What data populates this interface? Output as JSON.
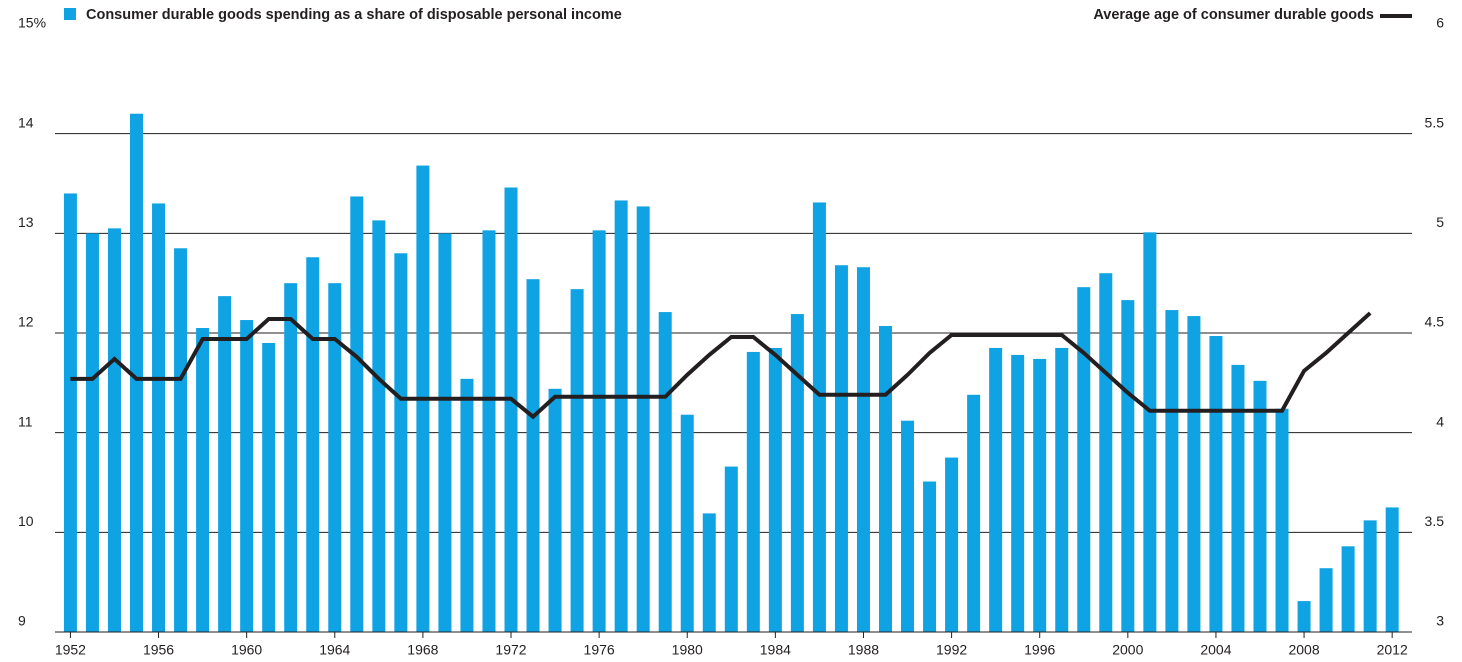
{
  "chart_data": {
    "type": "bar_line",
    "x": [
      1952,
      1953,
      1954,
      1955,
      1956,
      1957,
      1958,
      1959,
      1960,
      1961,
      1962,
      1963,
      1964,
      1965,
      1966,
      1967,
      1968,
      1969,
      1970,
      1971,
      1972,
      1973,
      1974,
      1975,
      1976,
      1977,
      1978,
      1979,
      1980,
      1981,
      1982,
      1983,
      1984,
      1985,
      1986,
      1987,
      1988,
      1989,
      1990,
      1991,
      1992,
      1993,
      1994,
      1995,
      1996,
      1997,
      1998,
      1999,
      2000,
      2001,
      2002,
      2003,
      2004,
      2005,
      2006,
      2007,
      2008,
      2009,
      2010,
      2011,
      2012
    ],
    "xlim": [
      1951.3,
      2012.9
    ],
    "xticks": [
      1952,
      1956,
      1960,
      1964,
      1968,
      1972,
      1976,
      1980,
      1984,
      1988,
      1992,
      1996,
      2000,
      2004,
      2008,
      2012
    ],
    "ylim": [
      9,
      15
    ],
    "yticks": [
      9,
      10,
      11,
      12,
      13,
      14,
      {
        "value": 15,
        "label": "15%"
      }
    ],
    "y2lim": [
      3,
      6
    ],
    "y2ticks": [
      3,
      3.5,
      4,
      4.5,
      5,
      5.5,
      6
    ],
    "grid": true,
    "series": [
      {
        "name": "Consumer durable goods spending as a share of disposable personal income",
        "type": "bar",
        "color": "#0fa3e3",
        "values": [
          13.4,
          13.0,
          13.05,
          14.2,
          13.3,
          12.85,
          12.05,
          12.37,
          12.13,
          11.9,
          12.5,
          12.76,
          12.5,
          13.37,
          13.13,
          12.8,
          13.68,
          13.0,
          11.54,
          13.03,
          13.46,
          12.54,
          11.44,
          12.44,
          13.03,
          13.33,
          13.27,
          12.21,
          11.18,
          10.19,
          10.66,
          11.81,
          11.85,
          12.19,
          13.31,
          12.68,
          12.66,
          12.07,
          11.12,
          10.51,
          10.75,
          11.38,
          11.85,
          11.78,
          11.74,
          11.85,
          12.46,
          12.6,
          12.33,
          13.01,
          12.23,
          12.17,
          11.97,
          11.68,
          11.52,
          11.24,
          9.31,
          9.64,
          9.86,
          10.12,
          10.25
        ]
      },
      {
        "name": "Average age of consumer durable goods",
        "type": "line",
        "axis": "y2",
        "color": "#231f20",
        "values": [
          4.27,
          4.27,
          4.37,
          4.27,
          4.27,
          4.27,
          4.47,
          4.47,
          4.47,
          4.57,
          4.57,
          4.47,
          4.47,
          4.38,
          4.27,
          4.17,
          4.17,
          4.17,
          4.17,
          4.17,
          4.17,
          4.08,
          4.18,
          4.18,
          4.18,
          4.18,
          4.18,
          4.18,
          4.29,
          4.39,
          4.48,
          4.48,
          4.39,
          4.29,
          4.19,
          4.19,
          4.19,
          4.19,
          4.29,
          4.4,
          4.49,
          4.49,
          4.49,
          4.49,
          4.49,
          4.49,
          4.4,
          4.3,
          4.2,
          4.11,
          4.11,
          4.11,
          4.11,
          4.11,
          4.11,
          4.11,
          4.31,
          4.4,
          4.5,
          4.6,
          null
        ]
      }
    ]
  }
}
